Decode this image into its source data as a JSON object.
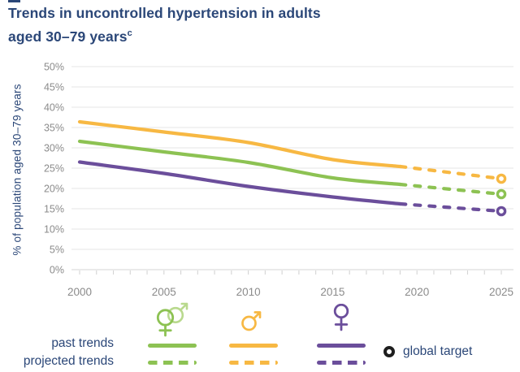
{
  "title": {
    "line1": "Trends in uncontrolled hypertension in adults",
    "line2": "aged 30–79 years",
    "superscript": "c"
  },
  "colors": {
    "men": "#F7B843",
    "both_sexes": "#8DC253",
    "both_sexes_light": "#B9D98E",
    "women": "#6B4E9B",
    "heading_text": "#2B4778",
    "axis_text": "#8B8B8B",
    "gridline": "#E6E6E6",
    "axis_line": "#D4D4D4",
    "global_target": "#1E1E1E"
  },
  "legend": {
    "past_label": "past trends",
    "projected_label": "projected trends",
    "global_target_label": "global target",
    "icons": [
      "both-sexes-icon",
      "male-icon",
      "female-icon",
      "global-target-icon"
    ]
  },
  "chart_data": {
    "type": "line",
    "title": "Trends in uncontrolled hypertension in adults aged 30–79 years",
    "ylabel": "% of population aged 30–79 years",
    "xlabel": "",
    "ylim": [
      0,
      50
    ],
    "xlim": [
      1999.5,
      2026
    ],
    "y_ticks": [
      0,
      5,
      10,
      15,
      20,
      25,
      30,
      35,
      40,
      45,
      50
    ],
    "y_tick_suffix": "%",
    "x_ticks": [
      2000,
      2005,
      2010,
      2015,
      2020,
      2025
    ],
    "grid": "horizontal",
    "legend_position": "bottom",
    "past_projection_split_year": 2019,
    "years": [
      2000,
      2005,
      2010,
      2015,
      2019,
      2022,
      2025
    ],
    "series": [
      {
        "name": "men",
        "symbol": "male",
        "color": "#F7B843",
        "past_style": "solid",
        "projected_style": "dashed",
        "values": [
          36.4,
          33.9,
          31.3,
          27.1,
          25.4,
          23.9,
          22.4
        ]
      },
      {
        "name": "both sexes",
        "symbol": "both-sexes",
        "color": "#8DC253",
        "past_style": "solid",
        "projected_style": "dashed",
        "values": [
          31.6,
          29.0,
          26.4,
          22.6,
          21.0,
          19.8,
          18.6
        ]
      },
      {
        "name": "women",
        "symbol": "female",
        "color": "#6B4E9B",
        "past_style": "solid",
        "projected_style": "dashed",
        "values": [
          26.5,
          23.7,
          20.5,
          17.9,
          16.2,
          15.3,
          14.4
        ]
      }
    ],
    "global_target_markers": [
      {
        "series": "men",
        "year": 2025,
        "value": 22.4
      },
      {
        "series": "both sexes",
        "year": 2025,
        "value": 18.6
      },
      {
        "series": "women",
        "year": 2025,
        "value": 14.4
      }
    ]
  }
}
